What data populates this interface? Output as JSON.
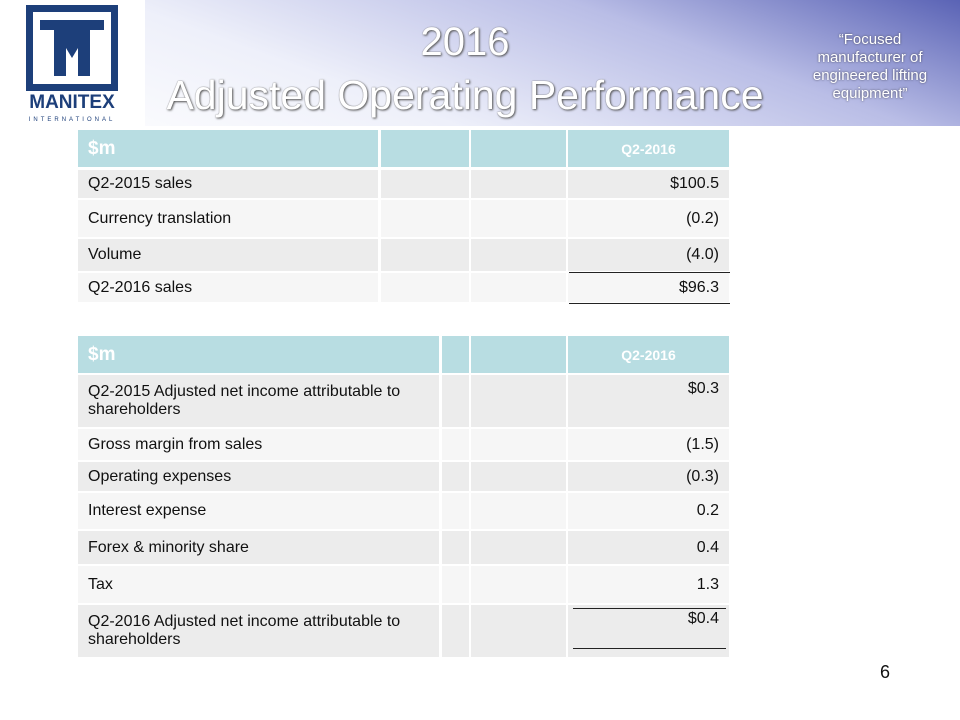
{
  "header": {
    "logo_name": "MANITEX",
    "logo_sub": "INTERNATIONAL",
    "title_line1": "2016",
    "title_line2": "Adjusted Operating Performance",
    "tagline": "“Focused manufacturer of engineered lifting equipment”"
  },
  "table1": {
    "header": {
      "label": "$m",
      "period": "Q2-2016"
    },
    "rows": [
      [
        "Q2-2015 sales",
        "$100.5"
      ],
      [
        "Currency translation",
        "(0.2)"
      ],
      [
        "Volume",
        "(4.0)"
      ],
      [
        "Q2-2016 sales",
        "$96.3"
      ]
    ]
  },
  "table2": {
    "header": {
      "label": "$m",
      "period": "Q2-2016"
    },
    "rows": [
      [
        "Q2-2015 Adjusted net income attributable to shareholders",
        "$0.3"
      ],
      [
        "Gross margin from sales",
        "(1.5)"
      ],
      [
        "Operating expenses",
        "(0.3)"
      ],
      [
        "Interest expense",
        "0.2"
      ],
      [
        "Forex & minority share",
        "0.4"
      ],
      [
        "Tax",
        "1.3"
      ],
      [
        "Q2-2016 Adjusted net income attributable to shareholders",
        "$0.4"
      ]
    ]
  },
  "page_number": "6"
}
